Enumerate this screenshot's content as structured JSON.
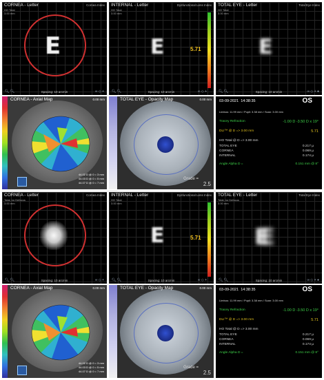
{
  "top": {
    "cornea_letter": {
      "title": "CORNEA - Letter",
      "right": "Cornea Index",
      "sub1": "HO Total",
      "sub2": "3.00 mm",
      "letter": "E",
      "spacing": "Spacing: 10 arcmin"
    },
    "internal_letter": {
      "title": "INTERNAL - Letter",
      "right": "Dysfunctional Lens Index",
      "sub1": "HO Total",
      "sub2": "3.00 mm",
      "letter": "E",
      "dli_value": "5.71",
      "spacing": "Spacing: 10 arcmin"
    },
    "total_letter": {
      "title": "TOTAL EYE - Letter",
      "right": "Total Eye Index",
      "sub1": "HO Total",
      "sub2": "3.00 mm",
      "letter": "E",
      "spacing": "Spacing: 10 arcmin"
    },
    "cornea_map": {
      "title": "CORNEA - Axial Map",
      "value": "0.00 mm",
      "readout1": "44.02 D @ 0 = 3 mm",
      "readout2": "44.03 D @ 0 = 5 mm",
      "readout3": "44.07 D @ 0 = 7 mm"
    },
    "total_map": {
      "title": "TOTAL EYE - Opacity Map",
      "value": "0.00 mm",
      "grade_label": "Grade =",
      "grade_value": "2.5"
    },
    "info": {
      "date": "03-09-2021",
      "time": "14:38:35",
      "eye": "OS",
      "limbus": "Limbus: 11.99 mm  /  Pupil: 3.38 mm  /  Scan: 3.00 mm",
      "tracey_label": "Tracey Refraction",
      "tracey_value": "-1.00 D -3.50 D x 19°",
      "dli_label": "DLI™ @ D => 3.00 mm",
      "dli_value": "5.71",
      "ho_label": "HO Total @ D => 3.00 mm",
      "rows": [
        {
          "label": "TOTAL EYE",
          "value": "0.217 µ"
        },
        {
          "label": "CORNEA",
          "value": "0.069 µ"
        },
        {
          "label": "INTERNAL",
          "value": "0.174 µ"
        }
      ],
      "angle_label": "Angle Alpha  D =",
      "angle_value": "0.151 mm @ 8°"
    }
  },
  "bottom": {
    "cornea_letter": {
      "title": "CORNEA - Letter",
      "right": "Cornea Index",
      "sub1": "Total, no Defocus",
      "sub2": "3.00 mm",
      "spacing": "Spacing: 10 arcmin"
    },
    "internal_letter": {
      "title": "INTERNAL - Letter",
      "right": "Dysfunctional Lens Index",
      "sub1": "HO Total",
      "sub2": "3.00 mm",
      "letter": "E",
      "dli_value": "5.71",
      "spacing": "Spacing: 10 arcmin"
    },
    "total_letter": {
      "title": "TOTAL EYE - Letter",
      "right": "Total Eye Index",
      "sub1": "Total, no Defocus",
      "sub2": "3.00 mm",
      "letter": "E",
      "spacing": "Spacing: 10 arcmin"
    },
    "cornea_map": {
      "title": "CORNEA - Axial Map",
      "value": "0.00 mm",
      "readout1": "44.02 D @ 0 = 3 mm",
      "readout2": "44.03 D @ 0 = 5 mm",
      "readout3": "44.07 D @ 0 = 7 mm"
    },
    "total_map": {
      "title": "TOTAL EYE - Opacity Map",
      "value": "0.00 mm",
      "grade_label": "Grade =",
      "grade_value": "2.5"
    },
    "info": {
      "date": "03-09-2021",
      "time": "14:38:35",
      "eye": "OS",
      "limbus": "Limbus: 11.99 mm  /  Pupil: 3.38 mm  /  Scan: 3.00 mm",
      "tracey_label": "Tracey Refraction",
      "tracey_value": "-1.00 D -3.50 D x 19°",
      "dli_label": "DLI™ @ D => 3.00 mm",
      "dli_value": "5.71",
      "ho_label": "HO Total @ D => 3.00 mm",
      "rows": [
        {
          "label": "TOTAL EYE",
          "value": "0.217 µ"
        },
        {
          "label": "CORNEA",
          "value": "0.069 µ"
        },
        {
          "label": "INTERNAL",
          "value": "0.174 µ"
        }
      ],
      "angle_label": "Angle Alpha  D =",
      "angle_value": "0.151 mm @ 8°"
    }
  },
  "colors": {
    "accent_green": "#3fd34a",
    "accent_yellow": "#e5c41f",
    "circle_red": "#d03030"
  }
}
